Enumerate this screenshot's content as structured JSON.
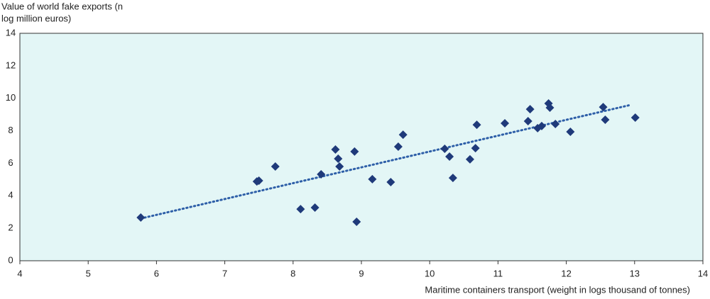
{
  "chart_data": {
    "type": "scatter",
    "y_label": [
      "Value of world fake exports (n",
      "log million euros)"
    ],
    "x_label": "Maritime containers transport (weight in logs thousand of tonnes)",
    "x": [
      5.77,
      7.47,
      7.5,
      7.74,
      8.11,
      8.32,
      8.41,
      8.62,
      8.66,
      8.68,
      8.9,
      8.93,
      9.16,
      9.43,
      9.54,
      9.61,
      10.22,
      10.29,
      10.34,
      10.59,
      10.67,
      10.69,
      11.1,
      11.44,
      11.47,
      11.58,
      11.64,
      11.74,
      11.76,
      11.84,
      12.06,
      12.54,
      12.57,
      13.01
    ],
    "series": [
      {
        "color": "#1f3a7a",
        "values": [
          2.66,
          4.88,
          4.93,
          5.8,
          3.18,
          3.27,
          5.32,
          6.85,
          6.28,
          5.8,
          6.72,
          2.4,
          5.02,
          4.84,
          7.02,
          7.76,
          6.89,
          6.41,
          5.1,
          6.24,
          6.93,
          8.37,
          8.46,
          8.59,
          9.33,
          8.16,
          8.29,
          9.68,
          9.42,
          8.42,
          7.94,
          9.46,
          8.68,
          8.81
        ]
      }
    ],
    "trend_line": {
      "color": "#2e5fa8",
      "x": [
        5.77,
        12.95
      ],
      "values": [
        2.6,
        9.6
      ]
    },
    "xlim": [
      4,
      14
    ],
    "xticks": [
      4,
      5,
      6,
      7,
      8,
      9,
      10,
      11,
      12,
      13,
      14
    ],
    "ylim": [
      0,
      14
    ],
    "yticks": [
      0,
      2,
      4,
      6,
      8,
      10,
      12,
      14
    ],
    "grid": false,
    "plot_background": "#e3f6f6"
  }
}
